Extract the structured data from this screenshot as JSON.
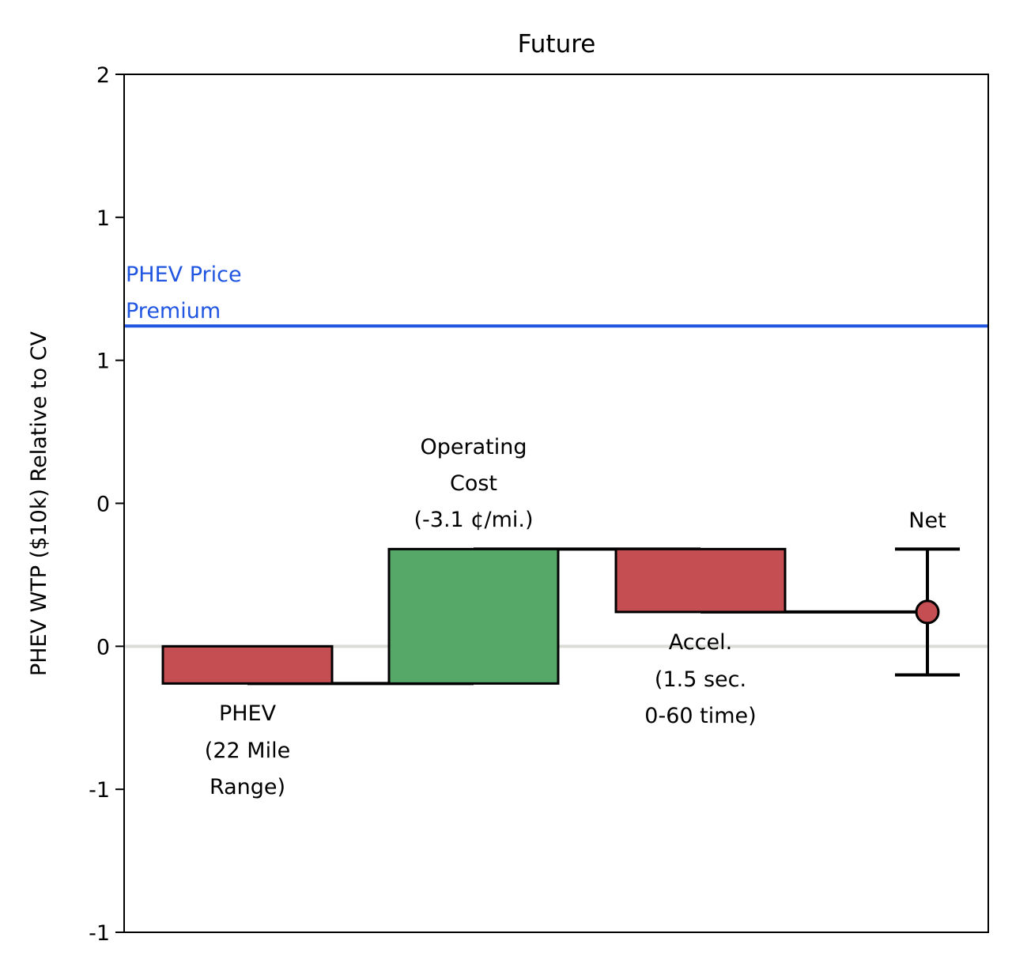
{
  "chart_data": {
    "type": "waterfall",
    "title": "Future",
    "xlabel": "",
    "ylabel": "PHEV WTP ($10k) Relative to CV",
    "ylim": [
      -1.0,
      2.0
    ],
    "y_ticks": [
      -1.0,
      -0.5,
      0.0,
      0.5,
      1.0,
      1.5,
      2.0
    ],
    "y_tick_labels": [
      "-1",
      "-1",
      "0",
      "0",
      "1",
      "1",
      "2"
    ],
    "grid": false,
    "baseline": 0,
    "price_premium": {
      "label": "PHEV Price Premium",
      "value": 1.12
    },
    "steps": [
      {
        "label": "PHEV (22 Mile Range)",
        "start": 0.0,
        "end": -0.13,
        "color": "#c44e52"
      },
      {
        "label": "Operating Cost (-3.1 ¢/mi.)",
        "start": -0.13,
        "end": 0.34,
        "color": "#55a868"
      },
      {
        "label": "Accel. (1.5 sec. 0-60 time)",
        "start": 0.34,
        "end": 0.12,
        "color": "#c44e52"
      }
    ],
    "net": {
      "label": "Net",
      "value": 0.12,
      "lower": -0.1,
      "upper": 0.34,
      "color": "#c44e52"
    },
    "colors": {
      "negative": "#c44e52",
      "positive": "#55a868",
      "premium": "#1f55e0",
      "zero_line": "#dcdcd7"
    }
  },
  "annotations": {
    "premium_line1": "PHEV Price",
    "premium_line2": "Premium",
    "phev_line1": "PHEV",
    "phev_line2": "(22 Mile",
    "phev_line3": "Range)",
    "op_line1": "Operating",
    "op_line2": "Cost",
    "op_line3": "(-3.1 ¢/mi.)",
    "accel_line1": "Accel.",
    "accel_line2": "(1.5 sec.",
    "accel_line3": "0-60 time)",
    "net_label": "Net"
  }
}
